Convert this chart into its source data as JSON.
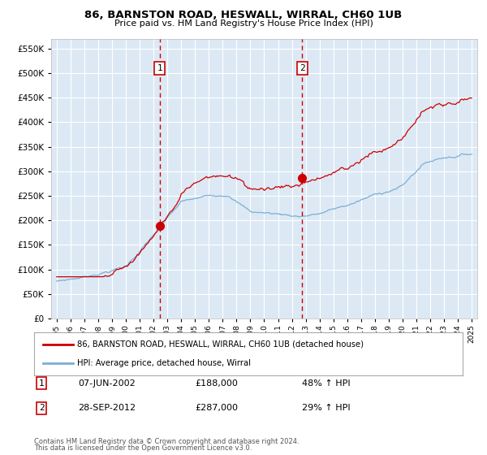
{
  "title_line1": "86, BARNSTON ROAD, HESWALL, WIRRAL, CH60 1UB",
  "title_line2": "Price paid vs. HM Land Registry's House Price Index (HPI)",
  "legend_entry1": "86, BARNSTON ROAD, HESWALL, WIRRAL, CH60 1UB (detached house)",
  "legend_entry2": "HPI: Average price, detached house, Wirral",
  "annotation1_label": "1",
  "annotation1_date": "07-JUN-2002",
  "annotation1_price": "£188,000",
  "annotation1_hpi": "48% ↑ HPI",
  "annotation2_label": "2",
  "annotation2_date": "28-SEP-2012",
  "annotation2_price": "£287,000",
  "annotation2_hpi": "29% ↑ HPI",
  "sale1_year": 2002.44,
  "sale1_value": 188000,
  "sale2_year": 2012.75,
  "sale2_value": 287000,
  "ylim": [
    0,
    570000
  ],
  "yticks": [
    0,
    50000,
    100000,
    150000,
    200000,
    250000,
    300000,
    350000,
    400000,
    450000,
    500000,
    550000
  ],
  "background_color": "#ffffff",
  "plot_bg_color": "#dce9f5",
  "grid_color": "#ffffff",
  "line1_color": "#cc0000",
  "line2_color": "#7bafd4",
  "dot_color": "#cc0000",
  "vline_color": "#cc0000",
  "footnote1": "Contains HM Land Registry data © Crown copyright and database right 2024.",
  "footnote2": "This data is licensed under the Open Government Licence v3.0."
}
